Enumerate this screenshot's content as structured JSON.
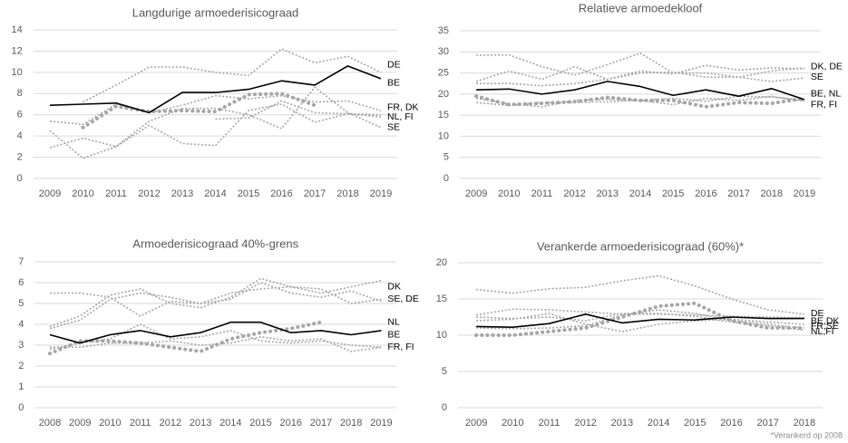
{
  "chart_data": [
    {
      "type": "line",
      "title": "Langdurige armoederisicograad",
      "categories": [
        "2009",
        "2010",
        "2011",
        "2012",
        "2013",
        "2014",
        "2015",
        "2016",
        "2017",
        "2018",
        "2019"
      ],
      "ylim": [
        0,
        14
      ],
      "yticks": [
        0,
        2,
        4,
        6,
        8,
        10,
        12,
        14
      ],
      "grid": true,
      "series": [
        {
          "color": "#a6a6a6",
          "style": "dotted",
          "values": [
            null,
            7.2,
            8.8,
            10.5,
            10.5,
            10.0,
            9.7,
            12.2,
            10.9,
            11.5,
            10.0
          ]
        },
        {
          "color": "#a6a6a6",
          "style": "dotted",
          "values": [
            5.4,
            5.1,
            7.0,
            6.2,
            6.9,
            7.8,
            7.5,
            7.8,
            7.2,
            7.3,
            6.4
          ]
        },
        {
          "color": "#a6a6a6",
          "style": "dotted",
          "values": [
            4.5,
            1.9,
            3.0,
            5.0,
            3.3,
            3.1,
            6.4,
            7.0,
            5.3,
            6.1,
            5.8
          ]
        },
        {
          "color": "#a6a6a6",
          "style": "dotted",
          "values": [
            2.9,
            3.8,
            3.0,
            5.4,
            6.6,
            6.6,
            6.0,
            4.7,
            8.6,
            6.2,
            4.8
          ]
        },
        {
          "color": "#a6a6a6",
          "style": "dotted",
          "values": [
            null,
            null,
            null,
            null,
            null,
            5.6,
            5.7,
            7.3,
            6.2,
            6.1,
            6.0
          ]
        },
        {
          "color": "#a6a6a6",
          "style": "bold-dotted",
          "values": [
            null,
            4.8,
            6.8,
            6.3,
            6.4,
            6.3,
            7.9,
            8.0,
            6.9,
            null,
            null
          ]
        },
        {
          "color": "#000000",
          "style": "solid",
          "values": [
            6.9,
            7.0,
            7.1,
            6.2,
            8.1,
            8.1,
            8.4,
            9.2,
            8.8,
            10.6,
            9.4
          ]
        }
      ],
      "annotations": [
        {
          "text": "DE",
          "y": 10.7
        },
        {
          "text": "BE",
          "y": 9.0
        },
        {
          "text": "FR, DK",
          "y": 6.7
        },
        {
          "text": "NL, FI",
          "y": 5.8
        },
        {
          "text": "SE",
          "y": 4.8
        }
      ]
    },
    {
      "type": "line",
      "title": "Relatieve armoedekloof",
      "categories": [
        "2009",
        "2010",
        "2011",
        "2012",
        "2013",
        "2014",
        "2015",
        "2016",
        "2017",
        "2018",
        "2019"
      ],
      "ylim": [
        0,
        35
      ],
      "yticks": [
        0,
        5,
        10,
        15,
        20,
        25,
        30,
        35
      ],
      "grid": true,
      "series": [
        {
          "color": "#a6a6a6",
          "style": "dotted",
          "values": [
            29.2,
            29.3,
            26.5,
            24.5,
            27.0,
            29.7,
            25.0,
            25.0,
            24.0,
            25.5,
            26.2
          ]
        },
        {
          "color": "#a6a6a6",
          "style": "dotted",
          "values": [
            23.0,
            25.5,
            23.5,
            26.5,
            23.5,
            25.5,
            24.8,
            26.8,
            25.7,
            26.2,
            26.0
          ]
        },
        {
          "color": "#a6a6a6",
          "style": "dotted",
          "values": [
            22.5,
            22.5,
            22.0,
            22.5,
            23.5,
            25.0,
            25.2,
            24.0,
            24.0,
            23.0,
            23.8
          ]
        },
        {
          "color": "#a6a6a6",
          "style": "dotted",
          "values": [
            19.0,
            17.7,
            17.0,
            18.5,
            18.8,
            18.5,
            17.5,
            19.0,
            18.5,
            19.5,
            18.3
          ]
        },
        {
          "color": "#a6a6a6",
          "style": "dotted",
          "values": [
            18.0,
            17.3,
            18.0,
            18.0,
            18.2,
            18.5,
            19.0,
            18.3,
            19.5,
            19.3,
            18.5
          ]
        },
        {
          "color": "#a6a6a6",
          "style": "bold-dotted",
          "values": [
            19.5,
            17.5,
            17.8,
            18.2,
            19.2,
            18.5,
            18.5,
            17.0,
            18.0,
            17.8,
            19.0
          ]
        },
        {
          "color": "#000000",
          "style": "solid",
          "values": [
            21.0,
            21.2,
            20.0,
            21.0,
            23.0,
            21.8,
            19.7,
            21.0,
            19.5,
            21.3,
            18.7
          ]
        }
      ],
      "annotations": [
        {
          "text": "DK, DE",
          "y": 26.5
        },
        {
          "text": "SE",
          "y": 24.0
        },
        {
          "text": "BE, NL",
          "y": 20.0
        },
        {
          "text": "FR, FI",
          "y": 17.5
        }
      ]
    },
    {
      "type": "line",
      "title": "Armoederisicograad 40%-grens",
      "categories": [
        "2008",
        "2009",
        "2010",
        "2011",
        "2012",
        "2013",
        "2014",
        "2015",
        "2016",
        "2017",
        "2018",
        "2019"
      ],
      "ylim": [
        0,
        7
      ],
      "yticks": [
        0,
        1,
        2,
        3,
        4,
        5,
        6,
        7
      ],
      "grid": true,
      "series": [
        {
          "color": "#a6a6a6",
          "style": "dotted",
          "values": [
            3.9,
            4.4,
            5.4,
            5.7,
            5.0,
            4.8,
            5.3,
            6.2,
            5.8,
            5.5,
            5.8,
            6.1
          ]
        },
        {
          "color": "#a6a6a6",
          "style": "dotted",
          "values": [
            5.5,
            5.5,
            5.3,
            4.4,
            5.1,
            5.0,
            5.5,
            5.7,
            5.8,
            5.7,
            5.0,
            5.2
          ]
        },
        {
          "color": "#a6a6a6",
          "style": "dotted",
          "values": [
            3.8,
            4.2,
            5.2,
            5.5,
            5.3,
            5.0,
            5.2,
            6.0,
            5.5,
            5.3,
            5.6,
            5.1
          ]
        },
        {
          "color": "#a6a6a6",
          "style": "dotted",
          "values": [
            2.9,
            2.9,
            3.1,
            3.1,
            3.2,
            3.0,
            3.1,
            3.4,
            3.2,
            3.3,
            2.7,
            2.9
          ]
        },
        {
          "color": "#a6a6a6",
          "style": "dotted",
          "values": [
            2.8,
            3.1,
            3.3,
            4.0,
            3.3,
            3.4,
            3.7,
            3.2,
            3.1,
            3.2,
            3.0,
            2.9
          ]
        },
        {
          "color": "#a6a6a6",
          "style": "bold-dotted",
          "values": [
            2.6,
            3.2,
            3.2,
            3.1,
            2.9,
            2.7,
            3.3,
            3.6,
            3.8,
            4.1,
            null,
            null
          ]
        },
        {
          "color": "#000000",
          "style": "solid",
          "values": [
            3.5,
            3.1,
            3.5,
            3.7,
            3.4,
            3.6,
            4.1,
            4.1,
            3.6,
            3.7,
            3.5,
            3.7
          ]
        }
      ],
      "annotations": [
        {
          "text": "DK",
          "y": 5.8
        },
        {
          "text": "SE, DE",
          "y": 5.2
        },
        {
          "text": "NL",
          "y": 4.1
        },
        {
          "text": "BE",
          "y": 3.5
        },
        {
          "text": "FR, FI",
          "y": 2.9
        }
      ]
    },
    {
      "type": "line",
      "title": "Verankerde armoederisicograad (60%)*",
      "categories": [
        "2009",
        "2010",
        "2011",
        "2012",
        "2013",
        "2014",
        "2015",
        "2016",
        "2017",
        "2018"
      ],
      "ylim": [
        0,
        20
      ],
      "yticks": [
        0,
        5,
        10,
        15,
        20
      ],
      "grid": true,
      "series": [
        {
          "color": "#a6a6a6",
          "style": "dotted",
          "values": [
            16.3,
            15.8,
            16.4,
            16.6,
            17.5,
            18.2,
            16.8,
            15.0,
            13.5,
            12.9
          ]
        },
        {
          "color": "#a6a6a6",
          "style": "dotted",
          "values": [
            12.8,
            13.6,
            13.5,
            13.2,
            12.9,
            12.9,
            12.8,
            12.6,
            12.5,
            12.4
          ]
        },
        {
          "color": "#a6a6a6",
          "style": "dotted",
          "values": [
            12.0,
            12.2,
            13.0,
            11.5,
            10.5,
            11.5,
            12.0,
            12.2,
            11.8,
            11.5
          ]
        },
        {
          "color": "#a6a6a6",
          "style": "dotted",
          "values": [
            11.0,
            10.9,
            11.0,
            11.3,
            12.8,
            13.5,
            13.0,
            12.0,
            11.5,
            11.0
          ]
        },
        {
          "color": "#a6a6a6",
          "style": "dotted",
          "values": [
            12.5,
            12.3,
            12.5,
            12.0,
            13.0,
            13.0,
            12.6,
            11.8,
            11.3,
            10.7
          ]
        },
        {
          "color": "#a6a6a6",
          "style": "bold-dotted",
          "values": [
            10.0,
            10.0,
            10.5,
            11.0,
            12.5,
            14.0,
            14.4,
            12.0,
            11.0,
            11.0
          ]
        },
        {
          "color": "#000000",
          "style": "solid",
          "values": [
            11.2,
            11.1,
            11.6,
            12.9,
            11.7,
            12.2,
            12.1,
            12.5,
            12.3,
            12.3
          ]
        }
      ],
      "annotations": [
        {
          "text": "DE",
          "y": 13.0
        },
        {
          "text": "BE,DK",
          "y": 11.9
        },
        {
          "text": "FR,SE",
          "y": 11.2
        },
        {
          "text": "NL,FI",
          "y": 10.5
        }
      ],
      "footnote": "*Verankerd op 2008"
    }
  ]
}
